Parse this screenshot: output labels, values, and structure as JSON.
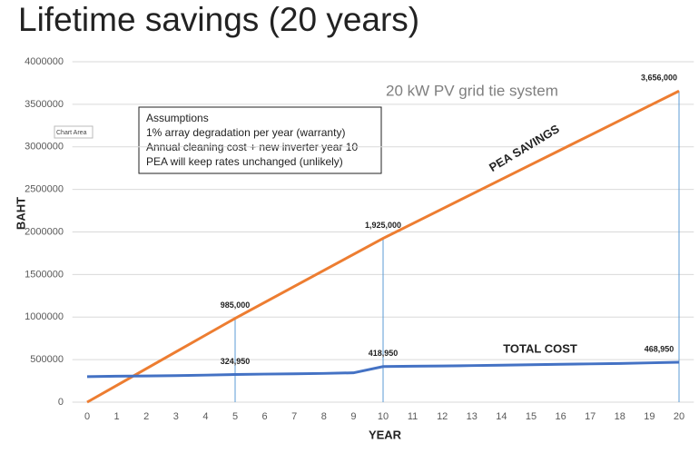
{
  "chart_data": {
    "type": "line",
    "title": "Lifetime savings (20 years)",
    "subtitle": "20 kW PV grid tie system",
    "tooltip": "Chart Area",
    "assumptions": {
      "heading": "Assumptions",
      "lines": [
        "1% array degradation per year (warranty)",
        "Annual cleaning cost + new inverter year 10",
        "PEA will keep rates unchanged (unlikely)"
      ]
    },
    "x_label": "YEAR",
    "y_label": "BAHT",
    "x": [
      0,
      1,
      2,
      3,
      4,
      5,
      6,
      7,
      8,
      9,
      10,
      11,
      12,
      13,
      14,
      15,
      16,
      17,
      18,
      19,
      20
    ],
    "xlim": [
      -0.5,
      20.5
    ],
    "ylim": [
      0,
      4000000
    ],
    "yticks": [
      0,
      500000,
      1000000,
      1500000,
      2000000,
      2500000,
      3000000,
      3500000,
      4000000
    ],
    "grid": true,
    "series": [
      {
        "name": "PEA SAVINGS",
        "color": "#ed7d31",
        "values": [
          0,
          197000,
          394000,
          591000,
          788000,
          985000,
          1173000,
          1361000,
          1549000,
          1737000,
          1925000,
          2098000,
          2271000,
          2445000,
          2618000,
          2791000,
          2964000,
          3137000,
          3310000,
          3483000,
          3656000
        ],
        "value_labels": [
          null,
          null,
          null,
          null,
          null,
          "985,000",
          null,
          null,
          null,
          null,
          "1,925,000",
          null,
          null,
          null,
          null,
          null,
          null,
          null,
          null,
          null,
          "3,656,000"
        ]
      },
      {
        "name": "TOTAL COST",
        "color": "#4472c4",
        "values": [
          300000,
          305000,
          308000,
          312000,
          318000,
          324950,
          330000,
          333000,
          338000,
          345000,
          418950,
          423000,
          425000,
          430000,
          435000,
          440000,
          445000,
          450000,
          455000,
          462000,
          468950
        ],
        "value_labels": [
          null,
          null,
          null,
          null,
          null,
          "324,950",
          null,
          null,
          null,
          null,
          "418,950",
          null,
          null,
          null,
          null,
          null,
          null,
          null,
          null,
          null,
          "468,950"
        ]
      }
    ]
  }
}
